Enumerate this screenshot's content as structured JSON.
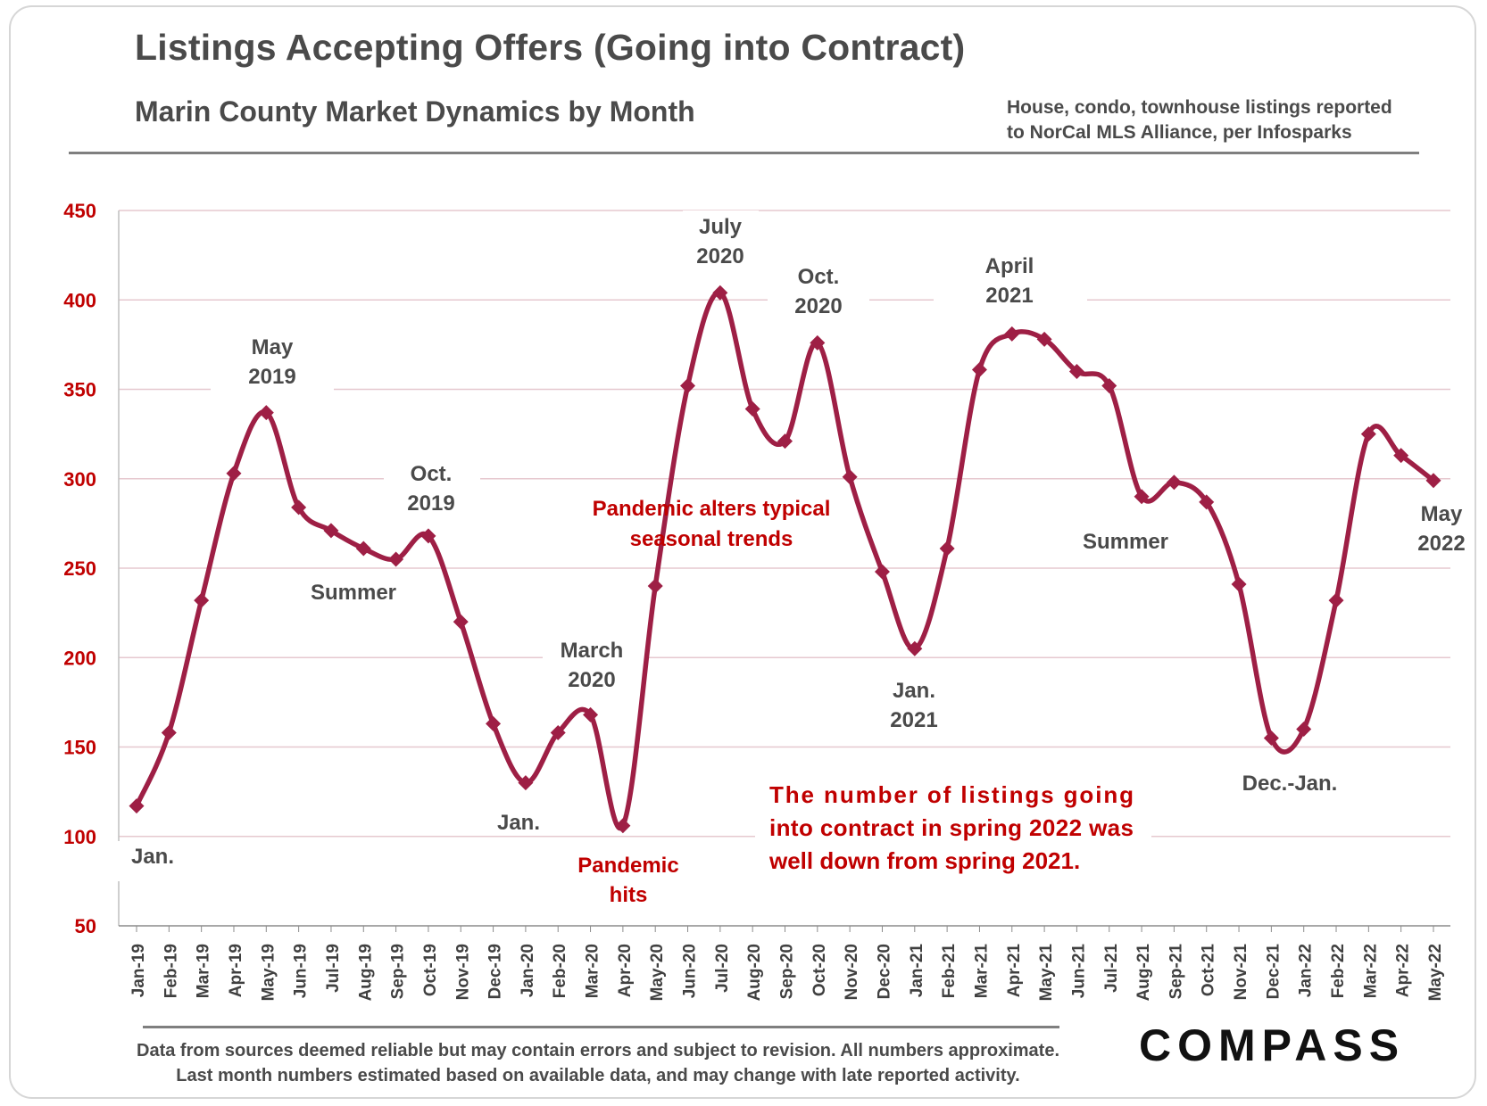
{
  "header": {
    "title": "Listings Accepting Offers (Going into Contract)",
    "subtitle": "Marin County Market Dynamics by Month",
    "source_note": [
      "House, condo, townhouse listings reported",
      "to NorCal MLS Alliance, per Infosparks"
    ]
  },
  "footer": {
    "notes": [
      "Data from sources deemed reliable but may contain errors and subject to revision. All numbers approximate.",
      "Last month numbers estimated based on available data, and may change with late reported activity."
    ],
    "logo_text": "COMPASS"
  },
  "colors": {
    "series": "#9e1f45",
    "axis_labels": "#c00000",
    "annotation_red": "#c00000",
    "annotation_gray": "#4a4a4a",
    "grid": "#e6c8cf"
  },
  "chart_data": {
    "type": "line",
    "title": "Listings Accepting Offers (Going into Contract)",
    "subtitle": "Marin County Market Dynamics by Month",
    "xlabel": "",
    "ylabel": "",
    "ylim": [
      50,
      450
    ],
    "yticks": [
      50,
      100,
      150,
      200,
      250,
      300,
      350,
      400,
      450
    ],
    "grid": true,
    "legend": "none",
    "categories": [
      "Jan-19",
      "Feb-19",
      "Mar-19",
      "Apr-19",
      "May-19",
      "Jun-19",
      "Jul-19",
      "Aug-19",
      "Sep-19",
      "Oct-19",
      "Nov-19",
      "Dec-19",
      "Jan-20",
      "Feb-20",
      "Mar-20",
      "Apr-20",
      "May-20",
      "Jun-20",
      "Jul-20",
      "Aug-20",
      "Sep-20",
      "Oct-20",
      "Nov-20",
      "Dec-20",
      "Jan-21",
      "Feb-21",
      "Mar-21",
      "Apr-21",
      "May-21",
      "Jun-21",
      "Jul-21",
      "Aug-21",
      "Sep-21",
      "Oct-21",
      "Nov-21",
      "Dec-21",
      "Jan-22",
      "Feb-22",
      "Mar-22",
      "Apr-22",
      "May-22"
    ],
    "series": [
      {
        "values": [
          117,
          158,
          232,
          303,
          337,
          284,
          271,
          261,
          255,
          268,
          220,
          163,
          130,
          158,
          168,
          106,
          240,
          352,
          404,
          339,
          321,
          376,
          301,
          248,
          205,
          261,
          361,
          381,
          378,
          360,
          352,
          290,
          298,
          287,
          241,
          155,
          160,
          232,
          325,
          313,
          299
        ],
        "marker": "diamond"
      }
    ],
    "annotations": [
      {
        "lines": [
          "Jan."
        ],
        "color": "gray"
      },
      {
        "lines": [
          "May",
          "2019"
        ],
        "color": "gray"
      },
      {
        "lines": [
          "Summer"
        ],
        "color": "gray"
      },
      {
        "lines": [
          "Oct.",
          "2019"
        ],
        "color": "gray"
      },
      {
        "lines": [
          "Jan."
        ],
        "color": "gray"
      },
      {
        "lines": [
          "March",
          "2020"
        ],
        "color": "gray"
      },
      {
        "lines": [
          "Pandemic",
          "hits"
        ],
        "color": "red"
      },
      {
        "lines": [
          "Pandemic alters typical",
          "seasonal trends"
        ],
        "color": "red"
      },
      {
        "lines": [
          "July",
          "2020"
        ],
        "color": "gray"
      },
      {
        "lines": [
          "Oct.",
          "2020"
        ],
        "color": "gray"
      },
      {
        "lines": [
          "Jan.",
          "2021"
        ],
        "color": "gray"
      },
      {
        "lines": [
          "April",
          "2021"
        ],
        "color": "gray"
      },
      {
        "lines": [
          "Summer"
        ],
        "color": "gray"
      },
      {
        "lines": [
          "Dec.-Jan."
        ],
        "color": "gray"
      },
      {
        "lines": [
          "May",
          "2022"
        ],
        "color": "gray"
      },
      {
        "lines": [
          "The number of listings going",
          "into contract in spring 2022 was",
          "well down from spring 2021."
        ],
        "color": "red"
      }
    ]
  }
}
